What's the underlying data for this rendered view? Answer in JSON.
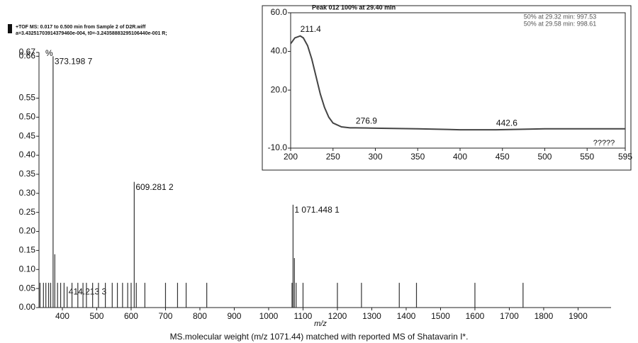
{
  "chart_data": [
    {
      "type": "bar",
      "header": [
        "+TOF MS: 0.017 to 0.500 min from Sample 2 of D2R.wiff",
        "a=3.43251703914379460e-004, t0=-3.24358883295106440e-001 R;"
      ],
      "y_unit_label": "%",
      "xlabel": "m/z",
      "caption": "MS.molecular weight (m/z  1071.44) matched with reported MS of Shatavarin I*.",
      "color": "#333333",
      "x": [
        335,
        345,
        352,
        360,
        366,
        373,
        378,
        386,
        395,
        405,
        414,
        428,
        445,
        460,
        470,
        488,
        505,
        525,
        545,
        560,
        575,
        590,
        600,
        609,
        615,
        640,
        700,
        735,
        760,
        820,
        1068,
        1071,
        1075,
        1080,
        1100,
        1200,
        1270,
        1380,
        1430,
        1600,
        1740
      ],
      "values": [
        0.065,
        0.065,
        0.065,
        0.065,
        0.065,
        0.66,
        0.14,
        0.065,
        0.065,
        0.065,
        0.055,
        0.065,
        0.065,
        0.065,
        0.065,
        0.065,
        0.065,
        0.065,
        0.065,
        0.065,
        0.065,
        0.065,
        0.065,
        0.33,
        0.065,
        0.065,
        0.065,
        0.065,
        0.065,
        0.065,
        0.065,
        0.27,
        0.13,
        0.065,
        0.065,
        0.065,
        0.065,
        0.065,
        0.065,
        0.065,
        0.065
      ],
      "peak_labels": [
        null,
        null,
        null,
        null,
        null,
        "373.198 7",
        null,
        null,
        null,
        null,
        "414.213 3",
        null,
        null,
        null,
        null,
        null,
        null,
        null,
        null,
        null,
        null,
        null,
        null,
        "609.281 2",
        null,
        null,
        null,
        null,
        null,
        null,
        null,
        "1 071.448 1",
        null,
        null,
        null,
        null,
        null,
        null,
        null,
        null,
        null
      ],
      "xlim": [
        332,
        1996
      ],
      "ylim": [
        0,
        0.67
      ],
      "xticks": [
        400,
        500,
        600,
        700,
        800,
        900,
        1000,
        1100,
        1200,
        1300,
        1400,
        1500,
        1600,
        1700,
        1800,
        1900
      ],
      "yticks": [
        {
          "value": 0,
          "label": "0.00"
        },
        0.05,
        {
          "value": 0.1,
          "label": "0.10"
        },
        0.15,
        {
          "value": 0.2,
          "label": "0.20"
        },
        0.25,
        {
          "value": 0.3,
          "label": "0.30"
        },
        0.35,
        {
          "value": 0.4,
          "label": "0.40"
        },
        0.45,
        {
          "value": 0.5,
          "label": "0.50"
        },
        0.55,
        0.66,
        0.67
      ]
    },
    {
      "type": "line",
      "title": "Peak 012 100% at 29.40 min",
      "notes": [
        "50% at 29.32 min: 997.53",
        "50% at 29.58 min: 998.61"
      ],
      "x": [
        200,
        205,
        211.4,
        215,
        220,
        225,
        230,
        235,
        240,
        245,
        250,
        260,
        270,
        276.9,
        290,
        300,
        350,
        400,
        442.6,
        500,
        550,
        595
      ],
      "series": [
        {
          "color": "#444444",
          "values": [
            44,
            47,
            48,
            47,
            43,
            36,
            27,
            18,
            11,
            6,
            3,
            1,
            0.5,
            0.5,
            0.4,
            0.3,
            0,
            -0.5,
            -0.5,
            0,
            0,
            0
          ]
        }
      ],
      "peak_labels": [
        null,
        null,
        "211.4",
        null,
        null,
        null,
        null,
        null,
        null,
        null,
        null,
        null,
        null,
        "276.9",
        null,
        null,
        null,
        null,
        "442.6",
        null,
        null,
        null
      ],
      "annotation": "?????",
      "xlim": [
        200,
        595
      ],
      "ylim": [
        -10,
        60
      ],
      "xticks": [
        200,
        250,
        300,
        350,
        400,
        450,
        500,
        550,
        595
      ],
      "yticks": [
        {
          "value": -10,
          "label": "-10.0"
        },
        {
          "value": 20,
          "label": "20.0"
        },
        {
          "value": 40,
          "label": "40.0"
        },
        {
          "value": 60,
          "label": "60.0"
        }
      ]
    }
  ]
}
